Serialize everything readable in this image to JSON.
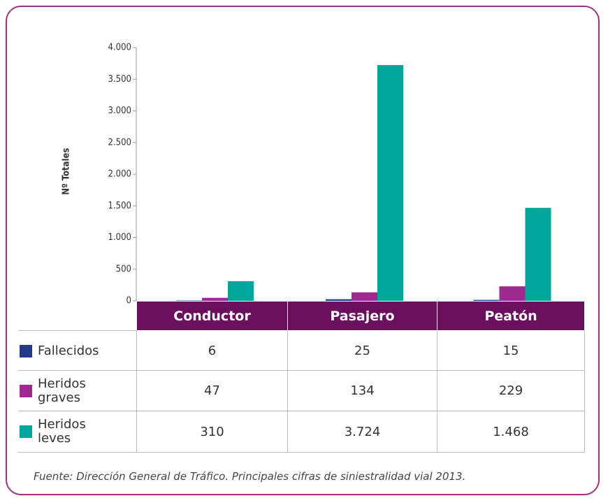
{
  "chart_data": {
    "type": "bar",
    "ylabel": "Nº Totales",
    "categories": [
      "Conductor",
      "Pasajero",
      "Peatón"
    ],
    "series": [
      {
        "name": "Fallecidos",
        "color": "#22398a",
        "values": [
          6,
          25,
          15
        ]
      },
      {
        "name": "Heridos graves",
        "color": "#9e2a8f",
        "values": [
          47,
          134,
          229
        ]
      },
      {
        "name": "Heridos leves",
        "color": "#00a59b",
        "values": [
          310,
          3724,
          1468
        ],
        "value_labels": [
          "310",
          "3.724",
          "1.468"
        ]
      }
    ],
    "ylim": [
      0,
      4000
    ],
    "yticks": [
      0,
      500,
      {
        "value": 1000,
        "label": "1.000"
      },
      {
        "value": 1500,
        "label": "1.500"
      },
      {
        "value": 2000,
        "label": "2.000"
      },
      {
        "value": 2500,
        "label": "2.500"
      },
      {
        "value": 3000,
        "label": "3.000"
      },
      {
        "value": 3500,
        "label": "3.500"
      },
      {
        "value": 4000,
        "label": "4.000"
      }
    ],
    "source": "Fuente: Dirección General de Tráfico. Principales cifras de siniestralidad vial 2013."
  }
}
